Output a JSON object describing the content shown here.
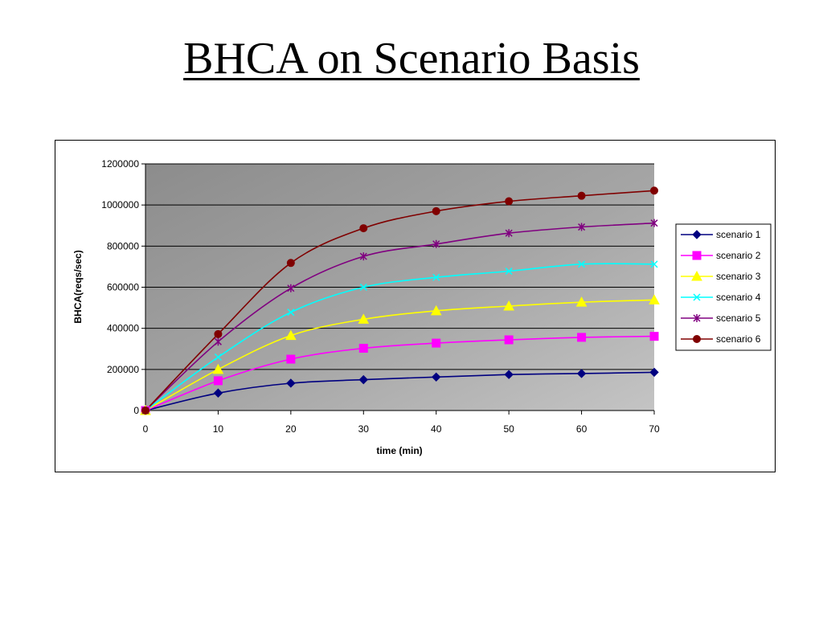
{
  "slide": {
    "title": "BHCA on Scenario Basis"
  },
  "chart_data": {
    "type": "line",
    "title": "",
    "xlabel": "time (min)",
    "ylabel": "BHCA(reqs/sec)",
    "x": [
      0,
      10,
      20,
      30,
      40,
      50,
      60,
      70
    ],
    "xlim": [
      0,
      70
    ],
    "ylim": [
      0,
      1200000
    ],
    "x_ticks": [
      "0",
      "10",
      "20",
      "30",
      "40",
      "50",
      "60",
      "70"
    ],
    "y_ticks": [
      "0",
      "200000",
      "400000",
      "600000",
      "800000",
      "1000000",
      "1200000"
    ],
    "grid": "horizontal major gridlines",
    "plot_background": "gray gradient",
    "legend_position": "right",
    "series": [
      {
        "name": "scenario 1",
        "color": "#000080",
        "marker": "diamond",
        "values": [
          0,
          85000,
          133000,
          150000,
          163000,
          175000,
          180000,
          186000
        ]
      },
      {
        "name": "scenario 2",
        "color": "#FF00FF",
        "marker": "square",
        "values": [
          0,
          145000,
          250000,
          303000,
          328000,
          344000,
          356000,
          361000
        ]
      },
      {
        "name": "scenario 3",
        "color": "#FFFF00",
        "marker": "triangle",
        "values": [
          0,
          200000,
          365000,
          444000,
          485000,
          508000,
          527000,
          538000
        ]
      },
      {
        "name": "scenario 4",
        "color": "#00FFFF",
        "marker": "x",
        "values": [
          0,
          260000,
          478000,
          600000,
          648000,
          678000,
          712000,
          712000
        ]
      },
      {
        "name": "scenario 5",
        "color": "#800080",
        "marker": "star",
        "values": [
          0,
          335000,
          595000,
          750000,
          810000,
          863000,
          893000,
          912000
        ]
      },
      {
        "name": "scenario 6",
        "color": "#800000",
        "marker": "circle",
        "values": [
          0,
          372000,
          718000,
          887000,
          970000,
          1018000,
          1045000,
          1070000
        ]
      }
    ]
  }
}
